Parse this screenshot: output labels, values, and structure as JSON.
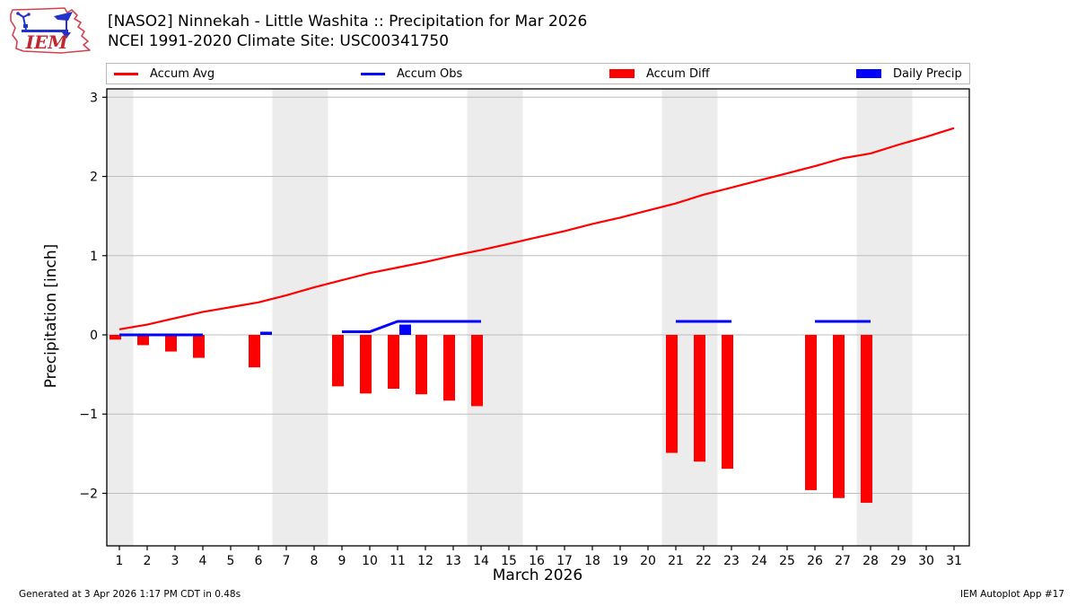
{
  "header": {
    "logo_text": "IEM"
  },
  "legend": {
    "items": [
      {
        "label": "Accum Avg",
        "swatch": "line",
        "color": "#ff0000"
      },
      {
        "label": "Accum Obs",
        "swatch": "line",
        "color": "#0000ff"
      },
      {
        "label": "Accum Diff",
        "swatch": "rect",
        "color": "#ff0000"
      },
      {
        "label": "Daily Precip",
        "swatch": "rect",
        "color": "#0000ff"
      }
    ]
  },
  "footer": {
    "generated": "Generated at 3 Apr 2026 1:17 PM CDT in 0.48s",
    "app": "IEM Autoplot App #17"
  },
  "chart_data": {
    "type": "line+bar",
    "title": "[NASO2] Ninnekah - Little Washita :: Precipitation for Mar 2026",
    "subtitle": "NCEI 1991-2020 Climate Site: USC00341750",
    "xlabel": "March 2026",
    "ylabel": "Precipitation [inch]",
    "ylim": [
      -2.66,
      3.13
    ],
    "yticks": [
      3,
      2,
      1,
      0,
      -1,
      -2
    ],
    "grid": "horizontal",
    "legend_position": "top",
    "weekend_bands": [
      [
        0.5,
        1.5
      ],
      [
        6.5,
        8.5
      ],
      [
        13.5,
        15.5
      ],
      [
        20.5,
        22.5
      ],
      [
        27.5,
        29.5
      ]
    ],
    "colors": {
      "accum_avg": "#ff0000",
      "accum_obs": "#0000ff",
      "accum_diff": "#ff0000",
      "daily_precip": "#0000ff",
      "weekend_band": "#ececec",
      "grid": "#bdbdbd",
      "spine": "#000000"
    },
    "days": [
      1,
      2,
      3,
      4,
      5,
      6,
      7,
      8,
      9,
      10,
      11,
      12,
      13,
      14,
      15,
      16,
      17,
      18,
      19,
      20,
      21,
      22,
      23,
      24,
      25,
      26,
      27,
      28,
      29,
      30,
      31
    ],
    "series": [
      {
        "name": "Accum Avg",
        "type": "line",
        "color": "#ff0000",
        "values": [
          0.07,
          0.13,
          0.21,
          0.29,
          0.35,
          0.41,
          0.5,
          0.6,
          0.69,
          0.78,
          0.85,
          0.92,
          1.0,
          1.07,
          1.15,
          1.23,
          1.31,
          1.4,
          1.48,
          1.57,
          1.66,
          1.77,
          1.86,
          1.95,
          2.04,
          2.13,
          2.23,
          2.29,
          2.4,
          2.5,
          2.61
        ]
      },
      {
        "name": "Accum Obs",
        "type": "line",
        "color": "#0000ff",
        "values": [
          0,
          0,
          0,
          0,
          null,
          null,
          null,
          null,
          0.04,
          0.04,
          0.17,
          0.17,
          0.17,
          0.17,
          null,
          null,
          null,
          null,
          null,
          null,
          0.17,
          0.17,
          0.17,
          null,
          null,
          0.17,
          0.17,
          0.17,
          null,
          null,
          null
        ]
      },
      {
        "name": "Accum Diff",
        "type": "bar",
        "color": "#ff0000",
        "values": [
          -0.06,
          -0.13,
          -0.21,
          -0.29,
          null,
          -0.41,
          null,
          null,
          -0.65,
          -0.74,
          -0.68,
          -0.75,
          -0.83,
          -0.9,
          null,
          null,
          null,
          null,
          null,
          null,
          -1.49,
          -1.6,
          -1.69,
          null,
          null,
          -1.96,
          -2.06,
          -2.12,
          null,
          null,
          null
        ]
      },
      {
        "name": "Daily Precip",
        "type": "bar",
        "color": "#0000ff",
        "values": [
          null,
          null,
          null,
          null,
          null,
          0.04,
          null,
          null,
          null,
          null,
          0.13,
          null,
          null,
          null,
          null,
          null,
          null,
          null,
          null,
          null,
          null,
          null,
          null,
          null,
          null,
          null,
          null,
          null,
          null,
          null,
          null
        ]
      }
    ]
  }
}
